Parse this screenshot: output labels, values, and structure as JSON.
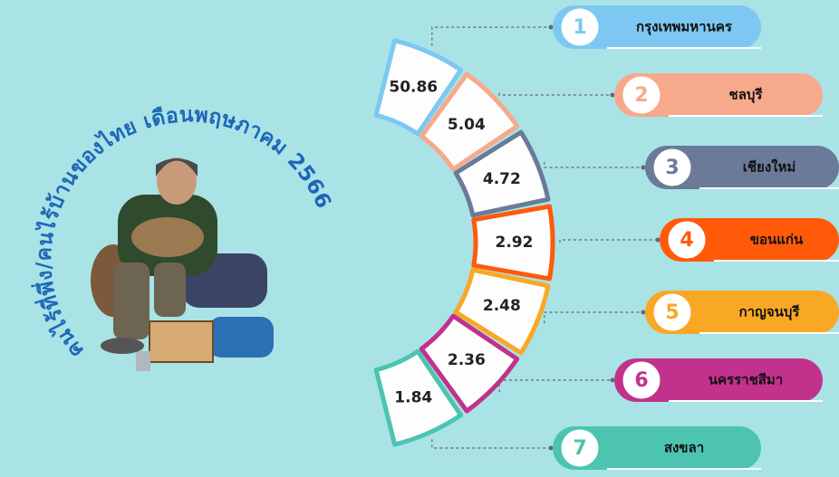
{
  "title": "คนไร้ที่พึ่ง/คนไร้บ้านของไทย เดือนพฤษภาคม 2566",
  "items": [
    {
      "rank": 1,
      "province": "กรุงเทพมหานคร",
      "value": 50.86,
      "color": "#7cc8f2"
    },
    {
      "rank": 2,
      "province": "ชลบุรี",
      "value": 5.04,
      "color": "#f7a98b"
    },
    {
      "rank": 3,
      "province": "เชียงใหม่",
      "value": 4.72,
      "color": "#6b7a99"
    },
    {
      "rank": 4,
      "province": "ขอนแก่น",
      "value": 2.92,
      "color": "#ff5a0a"
    },
    {
      "rank": 5,
      "province": "กาญจนบุรี",
      "value": 2.48,
      "color": "#f9a825"
    },
    {
      "rank": 6,
      "province": "นครราชสีมา",
      "value": 2.36,
      "color": "#c2318c"
    },
    {
      "rank": 7,
      "province": "สงขลา",
      "value": 1.84,
      "color": "#4cc4b0"
    }
  ]
}
